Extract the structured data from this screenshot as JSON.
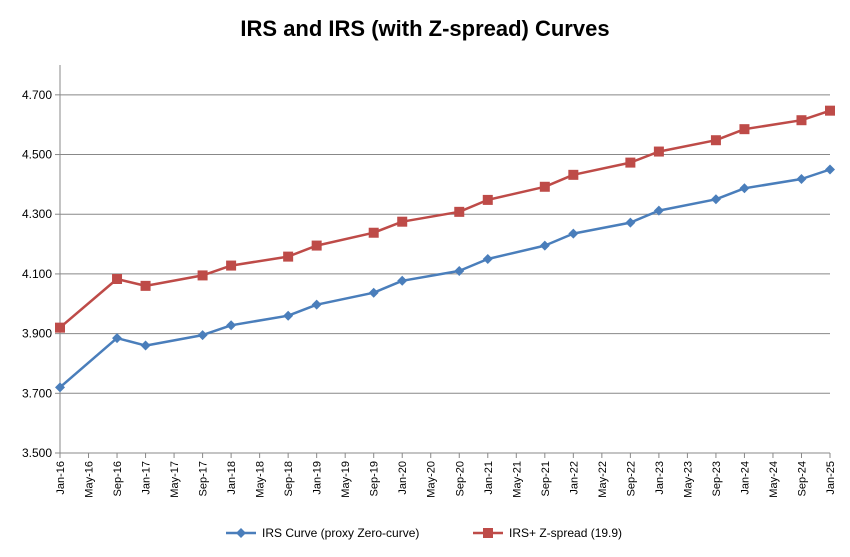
{
  "chart_data": {
    "type": "line",
    "title": "IRS and IRS (with Z-spread) Curves",
    "xlabel": "",
    "ylabel": "",
    "categories": [
      "Jan-16",
      "May-16",
      "Sep-16",
      "Jan-17",
      "May-17",
      "Sep-17",
      "Jan-18",
      "May-18",
      "Sep-18",
      "Jan-19",
      "May-19",
      "Sep-19",
      "Jan-20",
      "May-20",
      "Sep-20",
      "Jan-21",
      "May-21",
      "Sep-21",
      "Jan-22",
      "May-22",
      "Sep-22",
      "Jan-23",
      "May-23",
      "Sep-23",
      "Jan-24",
      "May-24",
      "Sep-24",
      "Jan-25"
    ],
    "ylim": [
      3.5,
      4.8
    ],
    "yticks": [
      "3.500",
      "3.700",
      "3.900",
      "4.100",
      "4.300",
      "4.500",
      "4.700"
    ],
    "ytick_values": [
      3.5,
      3.7,
      3.9,
      4.1,
      4.3,
      4.5,
      4.7
    ],
    "grid": "horizontal",
    "legend_position": "bottom",
    "series": [
      {
        "name": "IRS Curve (proxy Zero-curve)",
        "color": "#4A7EBB",
        "marker": "diamond",
        "points": [
          {
            "x": "Jan-16",
            "y": 3.72
          },
          {
            "x": "Sep-16",
            "y": 3.885
          },
          {
            "x": "Jan-17",
            "y": 3.86
          },
          {
            "x": "Sep-17",
            "y": 3.895
          },
          {
            "x": "Jan-18",
            "y": 3.928
          },
          {
            "x": "Sep-18",
            "y": 3.96
          },
          {
            "x": "Jan-19",
            "y": 3.997
          },
          {
            "x": "Sep-19",
            "y": 4.037
          },
          {
            "x": "Jan-20",
            "y": 4.077
          },
          {
            "x": "Sep-20",
            "y": 4.11
          },
          {
            "x": "Jan-21",
            "y": 4.15
          },
          {
            "x": "Sep-21",
            "y": 4.195
          },
          {
            "x": "Jan-22",
            "y": 4.235
          },
          {
            "x": "Sep-22",
            "y": 4.272
          },
          {
            "x": "Jan-23",
            "y": 4.312
          },
          {
            "x": "Sep-23",
            "y": 4.35
          },
          {
            "x": "Jan-24",
            "y": 4.387
          },
          {
            "x": "Sep-24",
            "y": 4.418
          },
          {
            "x": "Jan-25",
            "y": 4.45
          }
        ]
      },
      {
        "name": "IRS+ Z-spread (19.9)",
        "color": "#BE4B48",
        "marker": "square",
        "points": [
          {
            "x": "Jan-16",
            "y": 3.92
          },
          {
            "x": "Sep-16",
            "y": 4.083
          },
          {
            "x": "Jan-17",
            "y": 4.06
          },
          {
            "x": "Sep-17",
            "y": 4.095
          },
          {
            "x": "Jan-18",
            "y": 4.128
          },
          {
            "x": "Sep-18",
            "y": 4.158
          },
          {
            "x": "Jan-19",
            "y": 4.195
          },
          {
            "x": "Sep-19",
            "y": 4.238
          },
          {
            "x": "Jan-20",
            "y": 4.275
          },
          {
            "x": "Sep-20",
            "y": 4.308
          },
          {
            "x": "Jan-21",
            "y": 4.348
          },
          {
            "x": "Sep-21",
            "y": 4.392
          },
          {
            "x": "Jan-22",
            "y": 4.432
          },
          {
            "x": "Sep-22",
            "y": 4.473
          },
          {
            "x": "Jan-23",
            "y": 4.51
          },
          {
            "x": "Sep-23",
            "y": 4.548
          },
          {
            "x": "Jan-24",
            "y": 4.585
          },
          {
            "x": "Sep-24",
            "y": 4.615
          },
          {
            "x": "Jan-25",
            "y": 4.647
          }
        ]
      }
    ]
  }
}
